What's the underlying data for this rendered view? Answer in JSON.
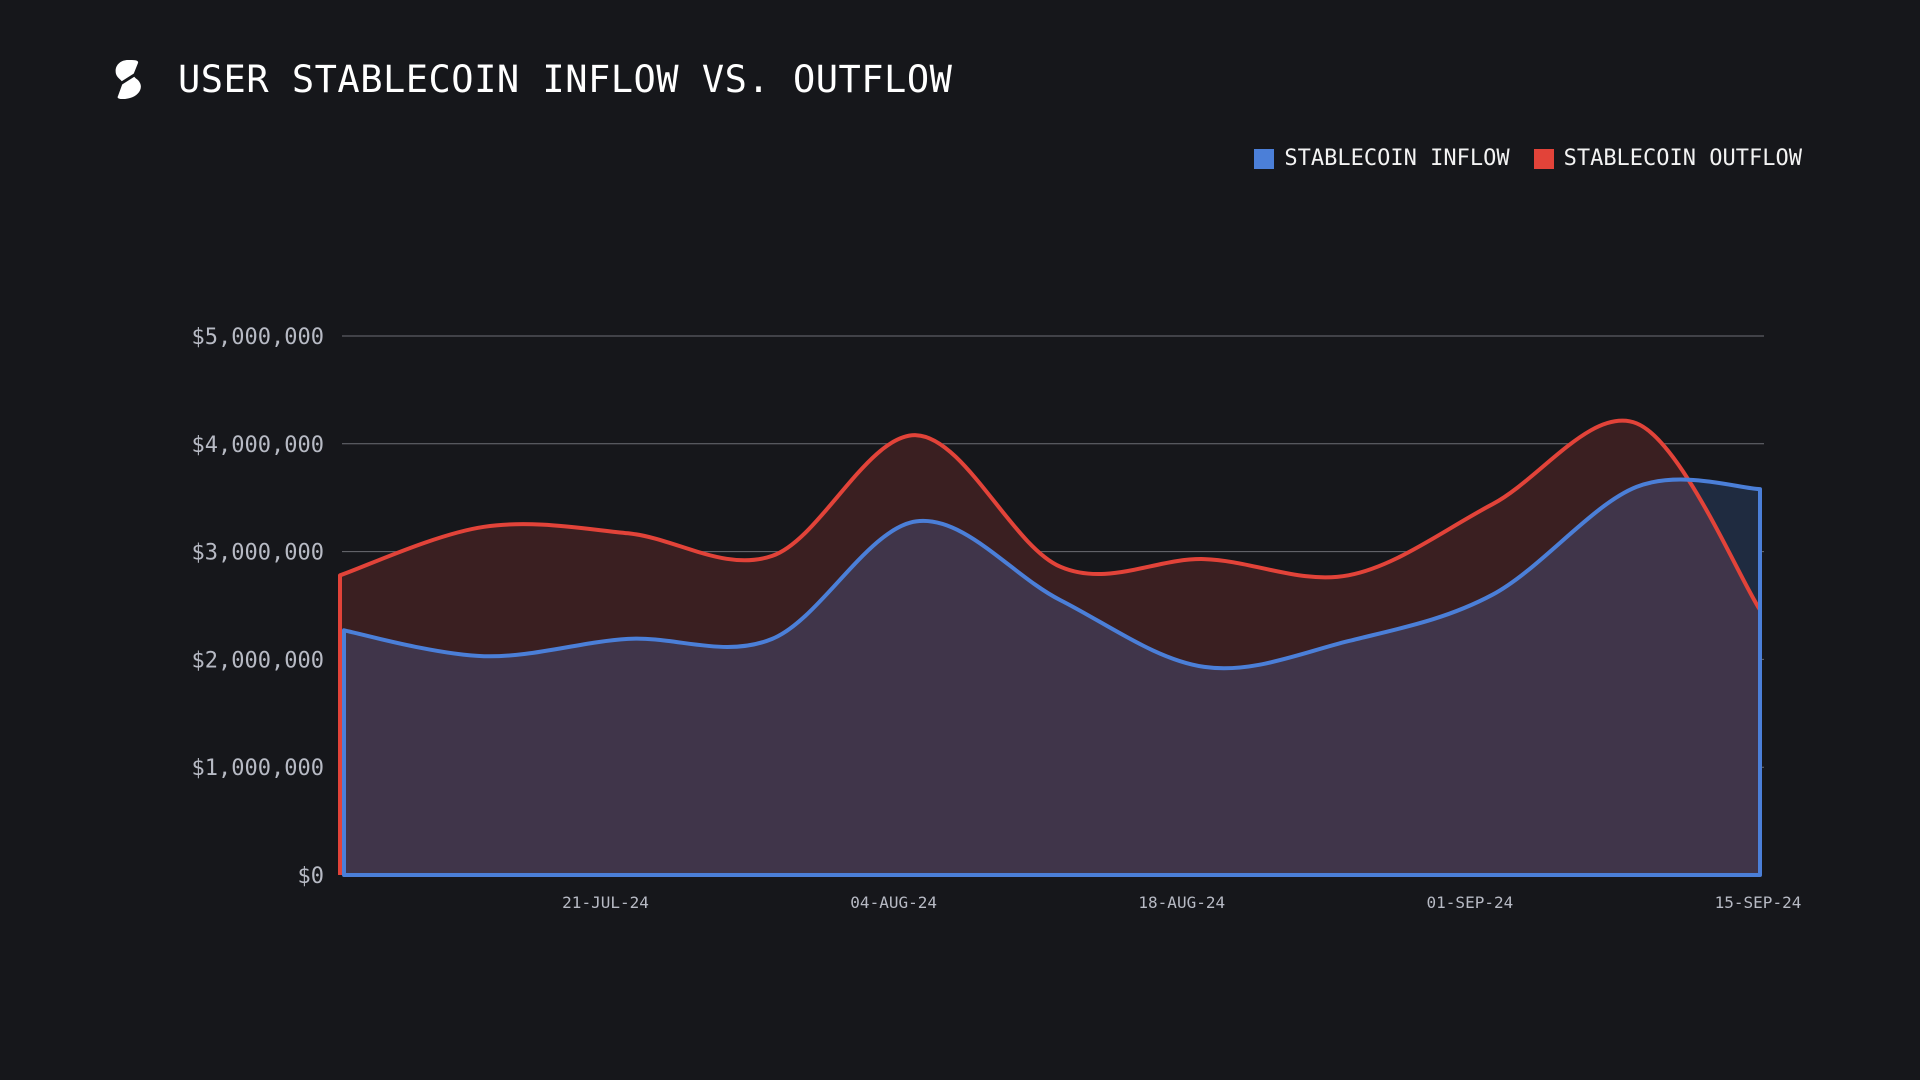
{
  "header": {
    "title": "USER STABLECOIN INFLOW VS. OUTFLOW",
    "logo_icon": "stablecoin-s-logo"
  },
  "colors": {
    "background": "#16171b",
    "inflow": "#4b7fd8",
    "outflow": "#e24339",
    "gridline": "#6c6e74",
    "inflow_fill": "#40354a",
    "outflow_fill": "#3a1f21",
    "inflow_only_fill": "#1f2b40"
  },
  "chart_data": {
    "type": "area",
    "title": "USER STABLECOIN INFLOW VS. OUTFLOW",
    "xlabel": "",
    "ylabel": "",
    "ylim": [
      0,
      5000000
    ],
    "yticks": [
      0,
      1000000,
      2000000,
      3000000,
      4000000,
      5000000
    ],
    "ytick_labels": [
      "$0",
      "$1,000,000",
      "$2,000,000",
      "$3,000,000",
      "$4,000,000",
      "$5,000,000"
    ],
    "xlim": [
      "2024-07-08",
      "2024-09-15"
    ],
    "xticks": [
      "2024-07-21",
      "2024-08-04",
      "2024-08-18",
      "2024-09-01",
      "2024-09-15"
    ],
    "xtick_labels": [
      "21-JUL-24",
      "04-AUG-24",
      "18-AUG-24",
      "01-SEP-24",
      "15-SEP-24"
    ],
    "grid": true,
    "legend_position": "top-right",
    "x": [
      "2024-07-08",
      "2024-07-15",
      "2024-07-22",
      "2024-07-29",
      "2024-08-05",
      "2024-08-12",
      "2024-08-19",
      "2024-08-26",
      "2024-09-02",
      "2024-09-09",
      "2024-09-15"
    ],
    "series": [
      {
        "name": "STABLECOIN INFLOW",
        "color": "#4b7fd8",
        "values": [
          2270000,
          2030000,
          2190000,
          2190000,
          3280000,
          2550000,
          1930000,
          2170000,
          2600000,
          3600000,
          3580000
        ]
      },
      {
        "name": "STABLECOIN OUTFLOW",
        "color": "#e24339",
        "values": [
          2780000,
          3230000,
          3170000,
          2960000,
          4080000,
          2860000,
          2930000,
          2780000,
          3440000,
          4190000,
          2460000
        ]
      }
    ]
  },
  "legend": {
    "items": [
      {
        "label": "STABLECOIN INFLOW",
        "color": "#4b7fd8"
      },
      {
        "label": "STABLECOIN OUTFLOW",
        "color": "#e24339"
      }
    ]
  }
}
